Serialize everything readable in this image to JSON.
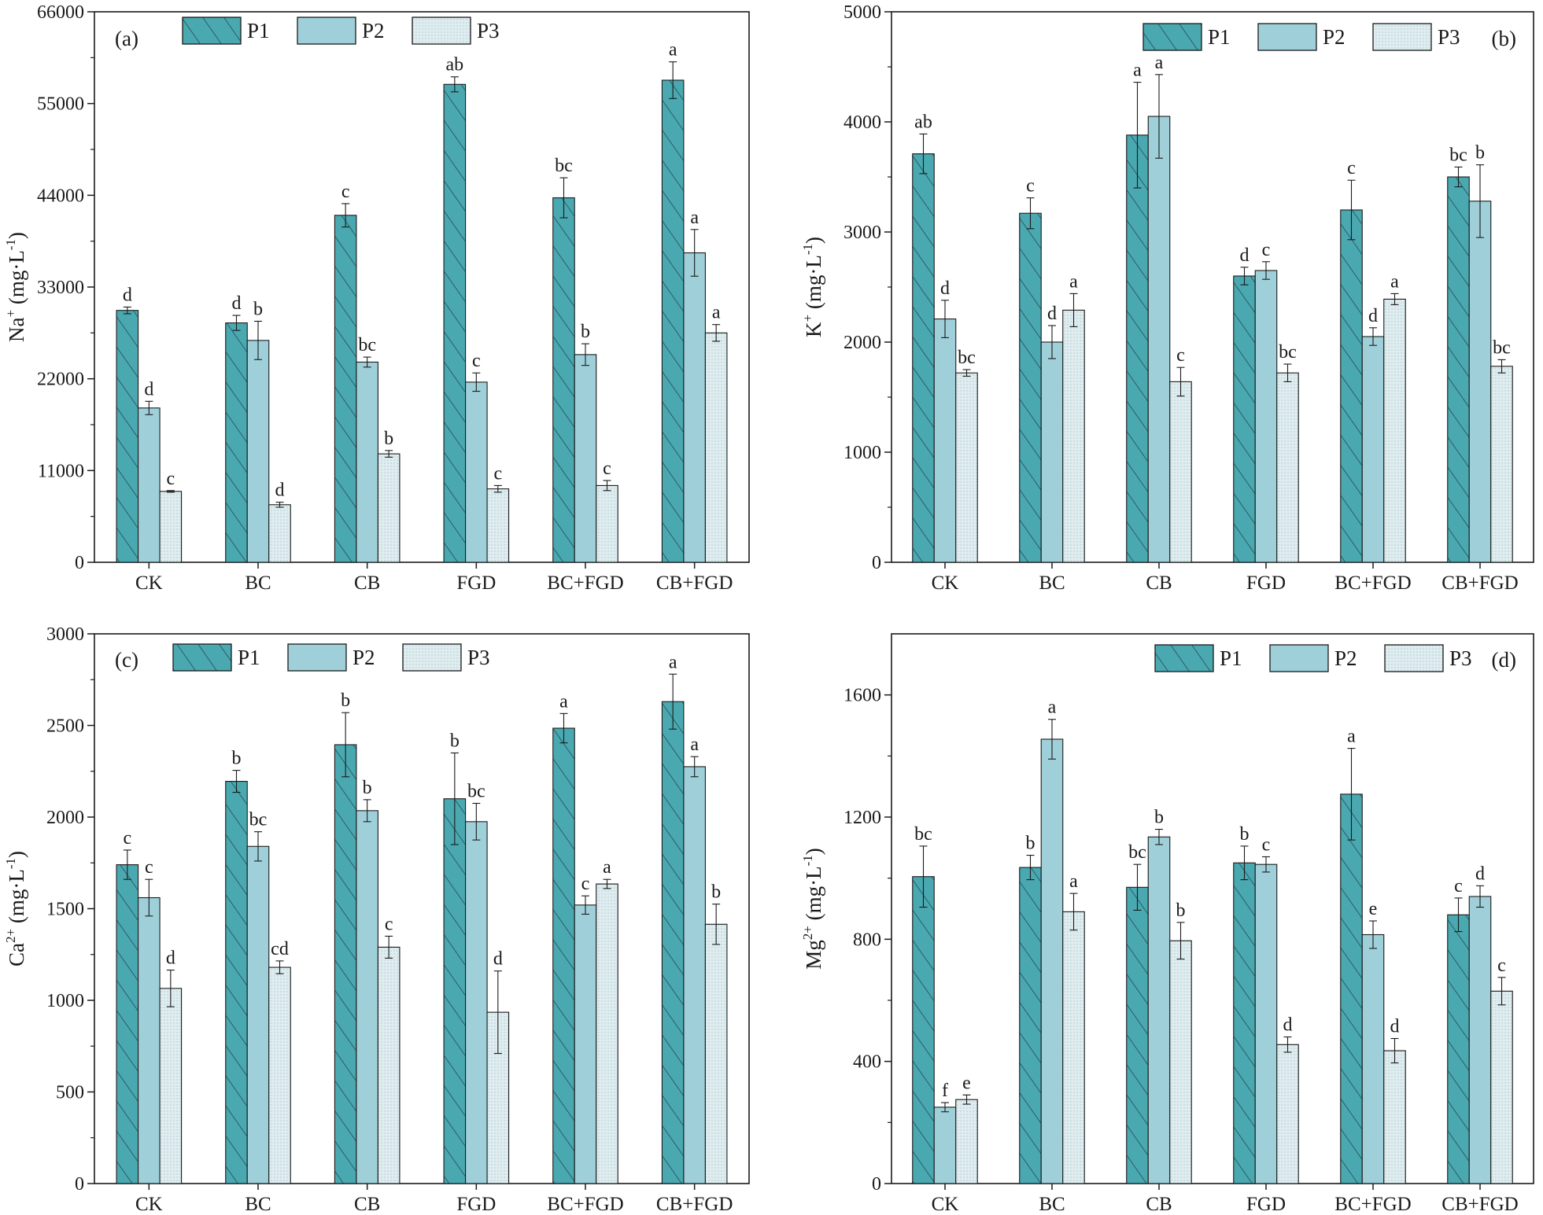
{
  "colors": {
    "p1": "#4aa8b0",
    "p2": "#9fd0d9",
    "p3": "#e0edf0",
    "hatch": "#1f3f44",
    "dots": "#8fb8c0",
    "frame": "#1a1a1a"
  },
  "chart_data": [
    {
      "id": "a",
      "panel_label": "(a)",
      "type": "bar",
      "title": "",
      "xlabel": "",
      "ylabel": {
        "base": "Na",
        "sup": "+",
        "unit": "(mg·L",
        "unit_sup": "-1",
        "close": ")"
      },
      "ylim": [
        0,
        66000
      ],
      "yticks": [
        0,
        11000,
        22000,
        33000,
        44000,
        55000,
        66000
      ],
      "legend_position": "top-left",
      "categories": [
        "CK",
        "BC",
        "CB",
        "FGD",
        "BC+FGD",
        "CB+FGD"
      ],
      "series": [
        {
          "name": "P1",
          "values": [
            30200,
            28700,
            41600,
            57300,
            43700,
            57800
          ],
          "errors": [
            400,
            900,
            1400,
            900,
            2400,
            2200
          ],
          "letters": [
            "d",
            "d",
            "c",
            "ab",
            "bc",
            "a"
          ]
        },
        {
          "name": "P2",
          "values": [
            18500,
            26600,
            24000,
            21600,
            24900,
            37100
          ],
          "errors": [
            800,
            2300,
            600,
            1100,
            1300,
            2800
          ],
          "letters": [
            "d",
            "b",
            "bc",
            "c",
            "b",
            "a"
          ]
        },
        {
          "name": "P3",
          "values": [
            8500,
            6900,
            13000,
            8800,
            9200,
            27500
          ],
          "errors": [
            100,
            300,
            400,
            400,
            600,
            1000
          ],
          "letters": [
            "c",
            "d",
            "b",
            "c",
            "c",
            "a"
          ]
        }
      ]
    },
    {
      "id": "b",
      "panel_label": "(b)",
      "type": "bar",
      "title": "",
      "xlabel": "",
      "ylabel": {
        "base": "K",
        "sup": "+",
        "unit": "(mg·L",
        "unit_sup": "-1",
        "close": ")"
      },
      "ylim": [
        0,
        5000
      ],
      "yticks": [
        0,
        1000,
        2000,
        3000,
        4000,
        5000
      ],
      "legend_position": "top-right",
      "categories": [
        "CK",
        "BC",
        "CB",
        "FGD",
        "BC+FGD",
        "CB+FGD"
      ],
      "series": [
        {
          "name": "P1",
          "values": [
            3710,
            3170,
            3880,
            2600,
            3200,
            3500
          ],
          "errors": [
            180,
            140,
            480,
            80,
            270,
            90
          ],
          "letters": [
            "ab",
            "c",
            "a",
            "d",
            "c",
            "bc"
          ]
        },
        {
          "name": "P2",
          "values": [
            2210,
            2000,
            4050,
            2650,
            2050,
            3280
          ],
          "errors": [
            170,
            150,
            380,
            80,
            80,
            330
          ],
          "letters": [
            "d",
            "d",
            "a",
            "c",
            "d",
            "b"
          ]
        },
        {
          "name": "P3",
          "values": [
            1720,
            2290,
            1640,
            1720,
            2390,
            1780
          ],
          "errors": [
            30,
            150,
            130,
            80,
            50,
            60
          ],
          "letters": [
            "bc",
            "a",
            "c",
            "bc",
            "a",
            "bc"
          ]
        }
      ]
    },
    {
      "id": "c",
      "panel_label": "(c)",
      "type": "bar",
      "title": "",
      "xlabel": "",
      "ylabel": {
        "base": "Ca",
        "sup": "2+",
        "unit": "(mg·L",
        "unit_sup": "-1",
        "close": ")"
      },
      "ylim": [
        0,
        3000
      ],
      "yticks": [
        0,
        500,
        1000,
        1500,
        2000,
        2500,
        3000
      ],
      "legend_position": "top-left",
      "categories": [
        "CK",
        "BC",
        "CB",
        "FGD",
        "BC+FGD",
        "CB+FGD"
      ],
      "series": [
        {
          "name": "P1",
          "values": [
            1740,
            2195,
            2395,
            2100,
            2485,
            2630
          ],
          "errors": [
            80,
            60,
            175,
            250,
            80,
            150
          ],
          "letters": [
            "c",
            "b",
            "b",
            "b",
            "a",
            "a"
          ]
        },
        {
          "name": "P2",
          "values": [
            1560,
            1840,
            2035,
            1975,
            1520,
            2275
          ],
          "errors": [
            100,
            80,
            60,
            100,
            50,
            55
          ],
          "letters": [
            "c",
            "bc",
            "b",
            "bc",
            "c",
            "a"
          ]
        },
        {
          "name": "P3",
          "values": [
            1065,
            1180,
            1290,
            935,
            1635,
            1415
          ],
          "errors": [
            100,
            35,
            60,
            225,
            25,
            110
          ],
          "letters": [
            "d",
            "cd",
            "c",
            "d",
            "a",
            "b"
          ]
        }
      ]
    },
    {
      "id": "d",
      "panel_label": "(d)",
      "type": "bar",
      "title": "",
      "xlabel": "",
      "ylabel": {
        "base": "Mg",
        "sup": "2+",
        "unit": "(mg·L",
        "unit_sup": "-1",
        "close": ")"
      },
      "ylim": [
        0,
        1800
      ],
      "yticks": [
        0,
        400,
        800,
        1200,
        1600
      ],
      "legend_position": "top-right",
      "categories": [
        "CK",
        "BC",
        "CB",
        "FGD",
        "BC+FGD",
        "CB+FGD"
      ],
      "series": [
        {
          "name": "P1",
          "values": [
            1005,
            1035,
            970,
            1050,
            1275,
            880
          ],
          "errors": [
            100,
            40,
            75,
            55,
            150,
            55
          ],
          "letters": [
            "bc",
            "b",
            "bc",
            "b",
            "a",
            "c"
          ]
        },
        {
          "name": "P2",
          "values": [
            250,
            1455,
            1135,
            1045,
            815,
            940
          ],
          "errors": [
            15,
            65,
            25,
            25,
            45,
            35
          ],
          "letters": [
            "f",
            "a",
            "b",
            "c",
            "e",
            "d"
          ]
        },
        {
          "name": "P3",
          "values": [
            275,
            890,
            795,
            455,
            435,
            630
          ],
          "errors": [
            15,
            60,
            60,
            25,
            40,
            45
          ],
          "letters": [
            "e",
            "a",
            "b",
            "d",
            "d",
            "c"
          ]
        }
      ]
    }
  ]
}
